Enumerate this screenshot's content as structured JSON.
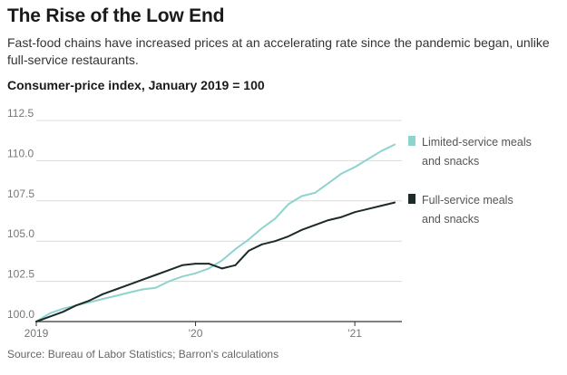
{
  "header": {
    "title": "The Rise of the Low End",
    "subtitle": "Fast-food chains have increased prices at an accelerating rate since the pandemic began, unlike full-service restaurants.",
    "units": "Consumer-price index, January 2019 = 100"
  },
  "source": "Source: Bureau of Labor Statistics; Barron's calculations",
  "chart_data": {
    "type": "line",
    "title": "The Rise of the Low End",
    "subtitle": "Fast-food chains have increased prices at an accelerating rate since the pandemic began, unlike full-service restaurants.",
    "units_label": "Consumer-price index, January 2019 = 100",
    "x": [
      "2019-01",
      "2019-02",
      "2019-03",
      "2019-04",
      "2019-05",
      "2019-06",
      "2019-07",
      "2019-08",
      "2019-09",
      "2019-10",
      "2019-11",
      "2019-12",
      "2020-01",
      "2020-02",
      "2020-03",
      "2020-04",
      "2020-05",
      "2020-06",
      "2020-07",
      "2020-08",
      "2020-09",
      "2020-10",
      "2020-11",
      "2020-12",
      "2021-01",
      "2021-02",
      "2021-03",
      "2021-04"
    ],
    "x_tick_labels": [
      "2019",
      "'20",
      "'21"
    ],
    "x_tick_values": [
      "2019-01",
      "2020-01",
      "2021-01"
    ],
    "ylim": [
      100.0,
      112.5
    ],
    "y_ticks": [
      100.0,
      102.5,
      105.0,
      107.5,
      110.0,
      112.5
    ],
    "y_tick_labels": [
      "100.0",
      "102.5",
      "105.0",
      "107.5",
      "110.0",
      "112.5"
    ],
    "grid": "horizontal",
    "legend_placement": "right",
    "series": [
      {
        "name": "Limited-service meals and snacks",
        "label_lines": [
          "Limited-service meals",
          "and snacks"
        ],
        "color": "#8fd3cf",
        "values": [
          100.0,
          100.5,
          100.8,
          101.0,
          101.2,
          101.4,
          101.6,
          101.8,
          102.0,
          102.1,
          102.5,
          102.8,
          103.0,
          103.3,
          103.8,
          104.5,
          105.1,
          105.8,
          106.4,
          107.3,
          107.8,
          108.0,
          108.6,
          109.2,
          109.6,
          110.1,
          110.6,
          111.0
        ]
      },
      {
        "name": "Full-service meals and snacks",
        "label_lines": [
          "Full-service meals",
          "and snacks"
        ],
        "color": "#1c2b2a",
        "values": [
          100.0,
          100.3,
          100.6,
          101.0,
          101.3,
          101.7,
          102.0,
          102.3,
          102.6,
          102.9,
          103.2,
          103.5,
          103.6,
          103.6,
          103.3,
          103.5,
          104.4,
          104.8,
          105.0,
          105.3,
          105.7,
          106.0,
          106.3,
          106.5,
          106.8,
          107.0,
          107.2,
          107.4
        ]
      }
    ]
  }
}
